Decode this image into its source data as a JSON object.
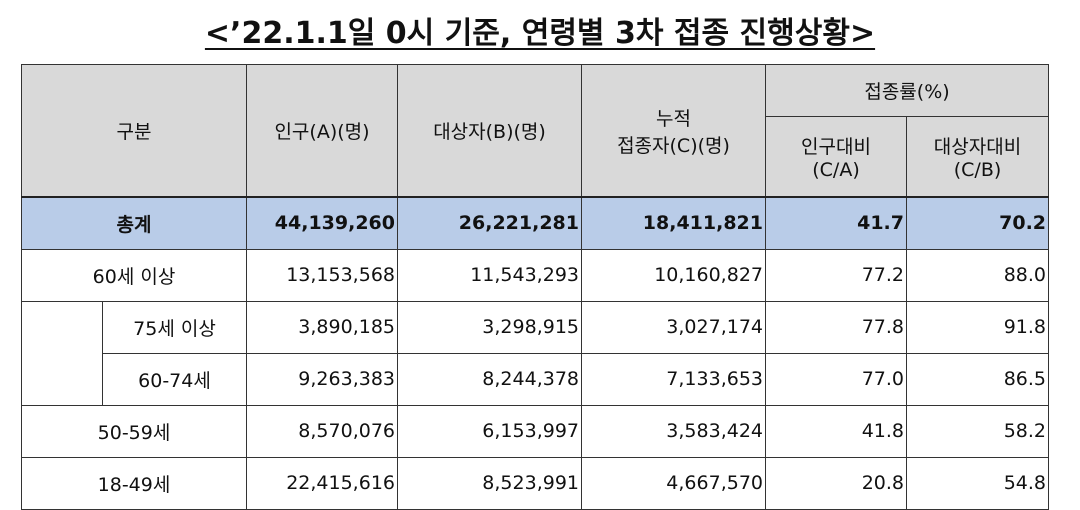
{
  "title": "<’22.1.1일 0시 기준, 연령별 3차 접종 진행상황>",
  "headers": {
    "category": "구분",
    "population": "인구(A)(명)",
    "target": "대상자(B)(명)",
    "cumulative_line1": "누적",
    "cumulative_line2": "접종자(C)(명)",
    "rate_group": "접종률(%)",
    "rate_pop_line1": "인구대비",
    "rate_pop_line2": "(C/A)",
    "rate_target_line1": "대상자대비",
    "rate_target_line2": "(C/B)"
  },
  "rows": [
    {
      "label": "총계",
      "population": "44,139,260",
      "target": "26,221,281",
      "cumulative": "18,411,821",
      "rate_pop": "41.7",
      "rate_target": "70.2"
    },
    {
      "label": "60세 이상",
      "population": "13,153,568",
      "target": "11,543,293",
      "cumulative": "10,160,827",
      "rate_pop": "77.2",
      "rate_target": "88.0"
    },
    {
      "label": "75세 이상",
      "population": "3,890,185",
      "target": "3,298,915",
      "cumulative": "3,027,174",
      "rate_pop": "77.8",
      "rate_target": "91.8"
    },
    {
      "label": "60-74세",
      "population": "9,263,383",
      "target": "8,244,378",
      "cumulative": "7,133,653",
      "rate_pop": "77.0",
      "rate_target": "86.5"
    },
    {
      "label": "50-59세",
      "population": "8,570,076",
      "target": "6,153,997",
      "cumulative": "3,583,424",
      "rate_pop": "41.8",
      "rate_target": "58.2"
    },
    {
      "label": "18-49세",
      "population": "22,415,616",
      "target": "8,523,991",
      "cumulative": "4,667,570",
      "rate_pop": "20.8",
      "rate_target": "54.8"
    }
  ]
}
